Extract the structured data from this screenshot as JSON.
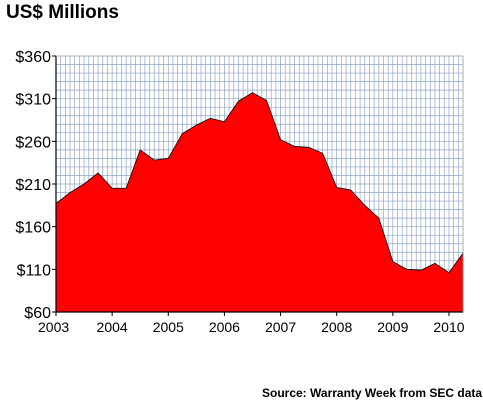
{
  "chart_data": {
    "type": "area",
    "title": "US$ Millions",
    "source": "Source: Warranty Week from SEC data",
    "xlabel": "",
    "ylabel": "",
    "ylim": [
      60,
      360
    ],
    "yticks": [
      "$360",
      "$310",
      "$260",
      "$210",
      "$160",
      "$110",
      "$60"
    ],
    "xlim": [
      2003.0,
      2010.25
    ],
    "xticks": [
      "2003",
      "2004",
      "2005",
      "2006",
      "2007",
      "2008",
      "2009",
      "2010"
    ],
    "grid": true,
    "fill_color": "#ff0000",
    "grid_color": "#8fa6c4",
    "series": [
      {
        "x": [
          2003.0,
          2003.25,
          2003.5,
          2003.75,
          2004.0,
          2004.25,
          2004.5,
          2004.75,
          2005.0,
          2005.25,
          2005.5,
          2005.75,
          2006.0,
          2006.25,
          2006.5,
          2006.75,
          2007.0,
          2007.25,
          2007.5,
          2007.75,
          2008.0,
          2008.25,
          2008.5,
          2008.75,
          2009.0,
          2009.25,
          2009.5,
          2009.75,
          2010.0,
          2010.25
        ],
        "values": [
          187,
          200,
          210,
          223,
          205,
          205,
          250,
          238,
          240,
          269,
          279,
          287,
          283,
          307,
          317,
          308,
          262,
          254,
          253,
          246,
          206,
          203,
          185,
          170,
          119,
          110,
          109,
          117,
          106,
          129
        ]
      }
    ]
  }
}
